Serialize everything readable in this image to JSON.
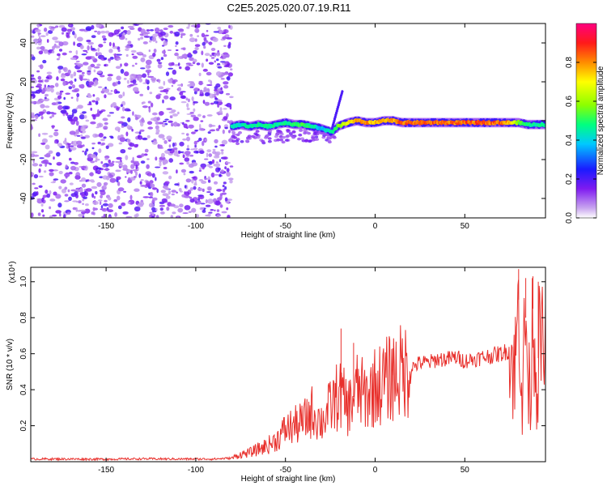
{
  "title": "C2E5.2025.020.07.19.R11",
  "chart_data": [
    {
      "type": "heatmap",
      "xlabel": "Height of straight line (km)",
      "ylabel": "Frequency (Hz)",
      "xlim": [
        -192,
        95
      ],
      "ylim": [
        -50,
        50
      ],
      "xticks": [
        -150,
        -100,
        -50,
        0,
        50
      ],
      "yticks": [
        -40,
        -20,
        0,
        20,
        40
      ],
      "noise_region_x": [
        -192,
        -80
      ],
      "trace": {
        "x": [
          -80,
          -75,
          -70,
          -65,
          -60,
          -55,
          -50,
          -45,
          -40,
          -35,
          -30,
          -27,
          -24,
          -21,
          -18,
          -15,
          -10,
          -5,
          0,
          5,
          10,
          15,
          20,
          30,
          40,
          50,
          60,
          70,
          75,
          80,
          85,
          90,
          95
        ],
        "freq": [
          -3,
          -2,
          -3,
          -2,
          -3,
          -2,
          -1,
          -2,
          -2,
          -3,
          -4,
          -5,
          -6,
          -3,
          -2,
          -1,
          0,
          -1,
          -1,
          0,
          0,
          -1,
          -1,
          -1,
          -1,
          -1,
          -1,
          -1,
          -1,
          -1,
          -2,
          -2,
          -2
        ],
        "amplitude": [
          0.45,
          0.45,
          0.5,
          0.5,
          0.5,
          0.5,
          0.5,
          0.55,
          0.55,
          0.5,
          0.4,
          0.45,
          0.5,
          0.6,
          0.7,
          0.75,
          0.85,
          0.85,
          0.8,
          0.85,
          0.85,
          0.9,
          0.9,
          0.9,
          0.9,
          0.9,
          0.9,
          0.9,
          0.85,
          0.6,
          0.5,
          0.5,
          0.5
        ]
      },
      "colorbar": {
        "label": "Normalized spectral amplitude",
        "range": [
          0,
          1
        ],
        "ticks": [
          0.0,
          0.2,
          0.4,
          0.6,
          0.8
        ]
      }
    },
    {
      "type": "line",
      "xlabel": "Height of straight line (km)",
      "ylabel": "SNR (10 * v/v)",
      "multiplier": "(x10⁴)",
      "xlim": [
        -192,
        95
      ],
      "ylim": [
        0,
        1.08
      ],
      "xticks": [
        -150,
        -100,
        -50,
        0,
        50
      ],
      "yticks": [
        0.2,
        0.4,
        0.6,
        0.8,
        1.0
      ],
      "color": "#e8302c",
      "x": [
        -192,
        -170,
        -150,
        -130,
        -110,
        -90,
        -80,
        -75,
        -70,
        -65,
        -60,
        -55,
        -50,
        -45,
        -40,
        -35,
        -30,
        -25,
        -20,
        -15,
        -10,
        -5,
        0,
        5,
        10,
        15,
        20,
        25,
        30,
        35,
        40,
        45,
        50,
        55,
        60,
        65,
        70,
        75,
        78,
        80,
        82,
        84,
        86,
        88,
        90,
        92,
        95
      ],
      "y": [
        0.015,
        0.015,
        0.014,
        0.016,
        0.015,
        0.015,
        0.02,
        0.04,
        0.05,
        0.07,
        0.09,
        0.12,
        0.18,
        0.2,
        0.22,
        0.28,
        0.22,
        0.3,
        0.38,
        0.3,
        0.4,
        0.36,
        0.42,
        0.44,
        0.48,
        0.5,
        0.52,
        0.55,
        0.55,
        0.57,
        0.57,
        0.58,
        0.56,
        0.57,
        0.58,
        0.59,
        0.6,
        0.62,
        0.5,
        0.9,
        0.4,
        0.8,
        0.3,
        0.85,
        0.45,
        0.7,
        0.55
      ],
      "spikes": [
        {
          "x": -19,
          "y": 0.74
        },
        {
          "x": -12,
          "y": 0.66
        },
        {
          "x": 10,
          "y": 0.63
        },
        {
          "x": 80,
          "y": 1.07
        },
        {
          "x": 84,
          "y": 1.02
        },
        {
          "x": 88,
          "y": 1.03
        },
        {
          "x": 91,
          "y": 1.0
        }
      ]
    }
  ]
}
